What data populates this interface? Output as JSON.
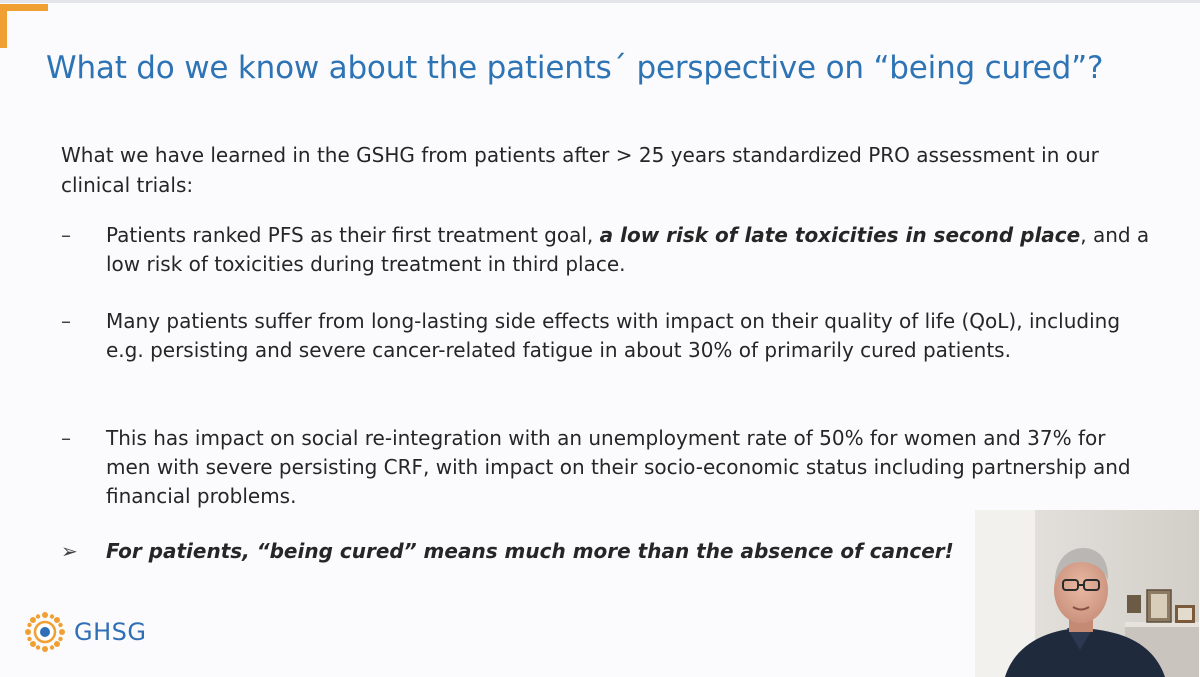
{
  "slide": {
    "title": "What do we know about the patients´ perspective on “being cured”?",
    "intro": "What we have learned in the GSHG from patients after > 25 years standardized PRO assessment in our clinical trials:",
    "bullets": [
      {
        "marker": "–",
        "text_before": "Patients ranked PFS as their first treatment goal, ",
        "emphasis": "a low risk of late toxicities in second place",
        "text_after": ", and a low risk of toxicities during treatment in third place."
      },
      {
        "marker": "–",
        "text": "Many patients suffer from long-lasting side effects with impact on their quality of life (QoL), including e.g. persisting and severe cancer-related fatigue in about 30% of primarily cured patients."
      },
      {
        "marker": "–",
        "text": "This has impact on social re-integration with an unemployment rate of 50% for women and 37% for men with severe persisting CRF, with impact on their socio-economic status including partnership and financial problems."
      }
    ],
    "conclusion": {
      "marker": "➢",
      "text": "For patients, “being cured” means much more than the absence of cancer!"
    }
  },
  "logo": {
    "text": "GHSG",
    "icon": "ghsg-sun-logo-icon"
  },
  "webcam": {
    "icon": "presenter-webcam-feed"
  },
  "colors": {
    "title": "#2e74b5",
    "accent": "#f0a033",
    "logo_text": "#2f6fb5",
    "body_text": "#262626"
  }
}
